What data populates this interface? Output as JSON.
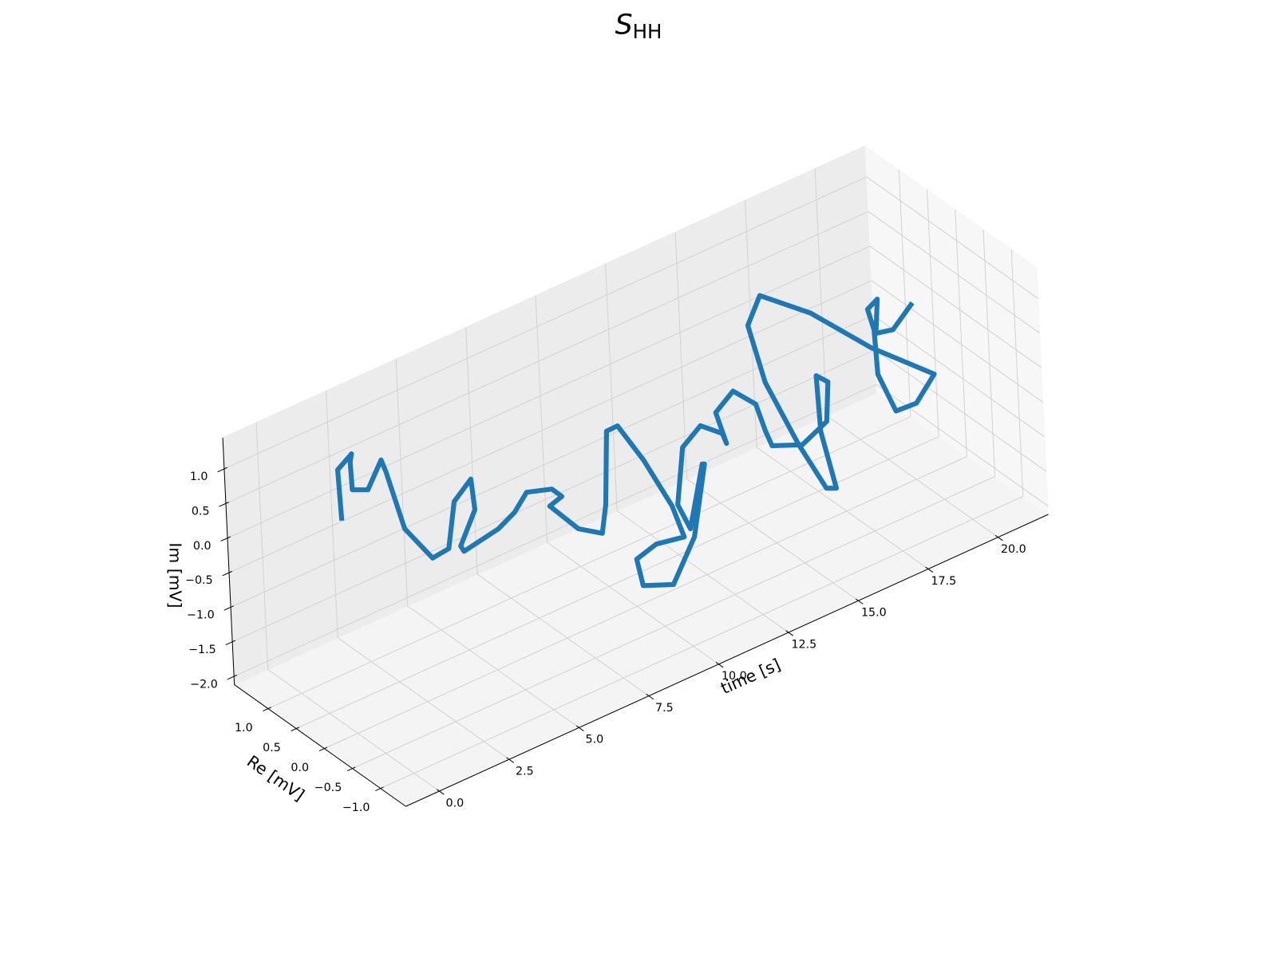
{
  "chart_data": {
    "type": "line3d",
    "title": {
      "text": "S",
      "subscript": "HH"
    },
    "xlabel": "time [s]",
    "ylabel": "Re [mV]",
    "zlabel": "Im [mV]",
    "color": "#1f77b4",
    "grid": true,
    "xlim": [
      -1.2,
      21.8
    ],
    "ylim": [
      -1.45,
      1.6
    ],
    "zlim": [
      -2.12,
      1.45
    ],
    "xticks": [
      {
        "value": 0,
        "label": "0.0"
      },
      2.5,
      {
        "value": 5,
        "label": "5.0"
      },
      7.5,
      {
        "value": 10,
        "label": "10.0"
      },
      12.5,
      {
        "value": 15,
        "label": "15.0"
      },
      17.5,
      {
        "value": 20,
        "label": "20.0"
      }
    ],
    "yticks": [
      {
        "value": -1,
        "label": "−1.0"
      },
      {
        "value": -0.5,
        "label": "−0.5"
      },
      {
        "value": 0,
        "label": "0.0"
      },
      0.5,
      {
        "value": 1,
        "label": "1.0"
      }
    ],
    "zticks": [
      {
        "value": -2,
        "label": "−2.0"
      },
      {
        "value": -1.5,
        "label": "−1.5"
      },
      {
        "value": -1,
        "label": "−1.0"
      },
      {
        "value": -0.5,
        "label": "−0.5"
      },
      {
        "value": 0,
        "label": "0.0"
      },
      0.5,
      {
        "value": 1,
        "label": "1.0"
      }
    ],
    "x": [
      0,
      0.3,
      0.6,
      0.9,
      1.2,
      1.5,
      1.8,
      2.1,
      2.4,
      2.7,
      3,
      3.3,
      3.6,
      3.9,
      4.2,
      4.5,
      4.8,
      5.1,
      5.4,
      5.7,
      6,
      6.3,
      6.6,
      6.9,
      7.2,
      7.5,
      7.8,
      8.1,
      8.4,
      8.7,
      9,
      9.3,
      9.6,
      9.9,
      10.2,
      10.5,
      10.8,
      11.1,
      11.4,
      11.7,
      12,
      12.3,
      12.6,
      12.9,
      13.2,
      13.5,
      13.8,
      14.1,
      14.4,
      14.7,
      15,
      15.3,
      15.6,
      15.9,
      16.2,
      16.5,
      16.8,
      17.1,
      17.4,
      17.7,
      18,
      18.3,
      18.6,
      18.9,
      19.2,
      19.5,
      19.8,
      20.1,
      20.4,
      20.7,
      21
    ],
    "y": [
      0.11,
      0.3,
      0.19,
      0.38,
      0.52,
      0.39,
      0.28,
      0.36,
      0.22,
      -0.11,
      -0.26,
      -0.24,
      -0.41,
      -0.3,
      0.15,
      0.25,
      -0.24,
      -0.4,
      -0.48,
      -0.79,
      -0.81,
      -0.42,
      -0.77,
      -1.05,
      -0.98,
      -0.9,
      -0.95,
      -1.24,
      -1.57,
      -1.61,
      -0.93,
      -0.4,
      -0.34,
      -0.74,
      -1.01,
      -1.1,
      -0.9,
      -0.47,
      -0.1,
      -0.08,
      -0.27,
      -0.51,
      -0.42,
      -0.09,
      -0.27,
      -0.52,
      -0.52,
      -0.47,
      -0.87,
      -1.18,
      -1.08,
      -0.71,
      -0.59,
      -0.67,
      -0.33,
      0.31,
      1.02,
      1.45,
      1.36,
      0.6,
      -0.33,
      -1.31,
      -0.8,
      -0.26,
      0.2,
      0.39,
      0.65,
      0.62,
      0.83,
      0.67,
      0.45
    ],
    "z": [
      0.89,
      1.46,
      1.7,
      1.42,
      0.88,
      0.9,
      1.34,
      1.07,
      0.27,
      -0.02,
      0.15,
      0.76,
      1.13,
      0.57,
      -0.27,
      -0.46,
      0.09,
      0.37,
      0.65,
      0.82,
      0.67,
      0.25,
      0.07,
      0.11,
      0.43,
      1.39,
      1.44,
      1.06,
      0.53,
      0.05,
      -0.5,
      -1.08,
      -1.55,
      -1.36,
      -0.57,
      0.48,
      0.31,
      -0.93,
      -0.85,
      -0.09,
      0.28,
      0.25,
      0,
      0.2,
      0.56,
      0.46,
      0.01,
      -0.28,
      -0.09,
      0.37,
      0.83,
      0.65,
      -0.28,
      -1.11,
      -1.36,
      -1.14,
      -0.72,
      -0.2,
      0.23,
      0.36,
      0.34,
      0.47,
      -0.3,
      -0.78,
      -0.57,
      -0.09,
      0,
      0.11,
      -0.56,
      -0.47,
      -0.01
    ]
  }
}
